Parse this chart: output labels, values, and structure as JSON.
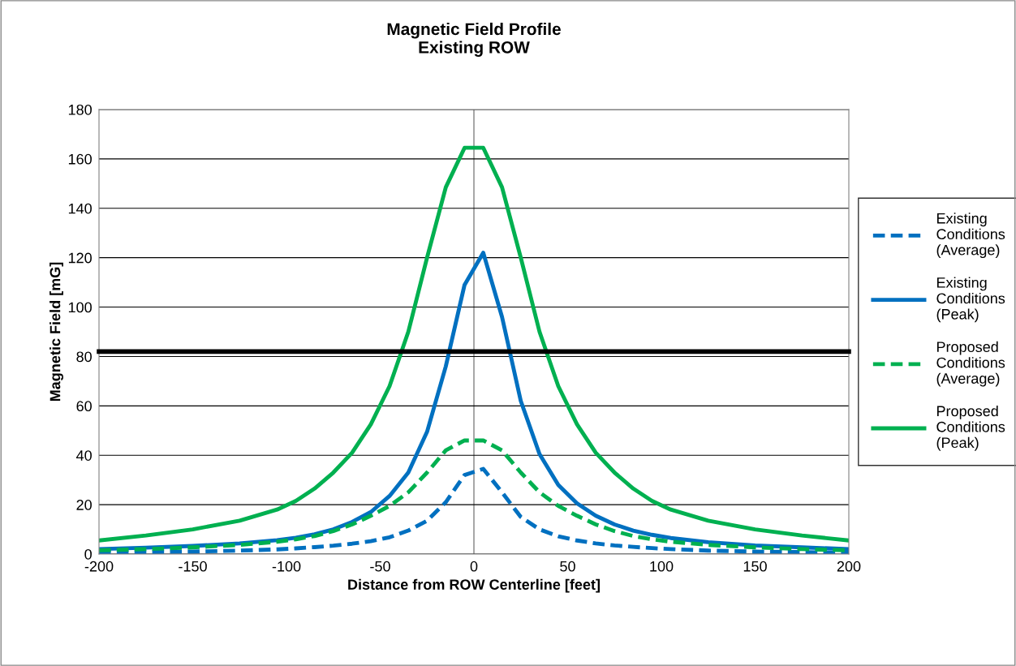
{
  "chart_data": {
    "type": "line",
    "title": "Magnetic Field Profile\nExisting ROW",
    "xlabel": "Distance from ROW Centerline [feet]",
    "ylabel": "Magnetic Field [mG]",
    "xlim": [
      -200,
      200
    ],
    "xticks": [
      -200,
      -150,
      -100,
      -50,
      0,
      50,
      100,
      150,
      200
    ],
    "ylim": [
      0,
      180
    ],
    "yticks": [
      0,
      20,
      40,
      60,
      80,
      100,
      120,
      140,
      160,
      180
    ],
    "grid": "y",
    "legend": "right",
    "marker": "none",
    "x": [
      -200,
      -175,
      -150,
      -125,
      -105,
      -95,
      -85,
      -75,
      -65,
      -55,
      -45,
      -35,
      -25,
      -15,
      -5,
      5,
      15,
      25,
      35,
      45,
      55,
      65,
      75,
      85,
      95,
      105,
      125,
      150,
      175,
      200
    ],
    "series": [
      {
        "name": "Existing Conditions (Average)",
        "color": "#0070c0",
        "line_style": "dashed",
        "values": [
          0.5,
          0.8,
          1,
          1.4,
          1.9,
          2.3,
          2.8,
          3.4,
          4.2,
          5.2,
          6.8,
          9.5,
          13.5,
          21,
          32,
          34.5,
          25,
          15,
          10,
          7.2,
          5.5,
          4.3,
          3.5,
          2.9,
          2.4,
          2,
          1.4,
          1,
          0.8,
          0.5
        ]
      },
      {
        "name": "Existing Conditions (Peak)",
        "color": "#0070c0",
        "line_style": "solid",
        "values": [
          2,
          2.6,
          3.3,
          4.3,
          5.6,
          6.6,
          8,
          10,
          13,
          17,
          23.5,
          33,
          49.5,
          76,
          109,
          122,
          96,
          62,
          40.5,
          28,
          20.5,
          15.5,
          12,
          9.5,
          7.8,
          6.5,
          4.8,
          3.5,
          2.7,
          2
        ]
      },
      {
        "name": "Proposed Conditions (Average)",
        "color": "#00b050",
        "line_style": "dashed",
        "values": [
          1.5,
          2,
          2.7,
          3.7,
          5,
          6,
          7.3,
          9.3,
          12,
          15.5,
          19.5,
          25,
          33,
          42,
          46,
          46,
          42,
          33,
          25,
          19.5,
          15.5,
          12,
          9.3,
          7.3,
          6,
          5,
          3.7,
          2.7,
          2,
          1.5
        ]
      },
      {
        "name": "Proposed Conditions (Peak)",
        "color": "#00b050",
        "line_style": "solid",
        "values": [
          5.5,
          7.5,
          10,
          13.5,
          18,
          21.5,
          26.5,
          33,
          41,
          52.5,
          68,
          90,
          120,
          148.5,
          164.5,
          164.5,
          148.5,
          120,
          90,
          68,
          52.5,
          41,
          33,
          26.5,
          21.5,
          18,
          13.5,
          10,
          7.5,
          5.5
        ]
      }
    ],
    "ref_lines": [
      {
        "axis": "y",
        "value": 82,
        "color": "#000000",
        "line_style": "solid"
      }
    ]
  }
}
